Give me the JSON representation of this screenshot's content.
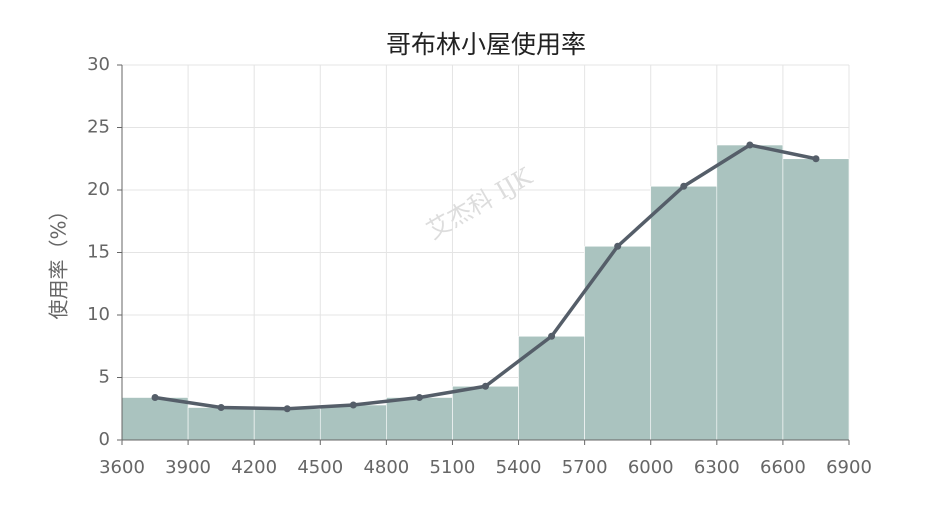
{
  "chart_data": {
    "type": "histogram",
    "title": "哥布林小屋使用率",
    "ylabel": "使用率（%）",
    "watermark": "艾杰科 IJK",
    "bins": [
      3600,
      3900,
      4200,
      4500,
      4800,
      5100,
      5400,
      5700,
      6000,
      6300,
      6600,
      6900
    ],
    "values": [
      3.4,
      2.6,
      2.5,
      2.8,
      3.4,
      4.3,
      8.3,
      15.5,
      20.3,
      23.6,
      22.5
    ],
    "color": "#aac3bf",
    "line_color": "#555e69",
    "line": true,
    "xlim": [
      3600,
      6900
    ],
    "xticks": [
      3600,
      3900,
      4200,
      4500,
      4800,
      5100,
      5400,
      5700,
      6000,
      6300,
      6600,
      6900
    ],
    "ylim": [
      0,
      30
    ],
    "yticks": [
      0,
      5,
      10,
      15,
      20,
      25,
      30
    ],
    "grid": true
  }
}
